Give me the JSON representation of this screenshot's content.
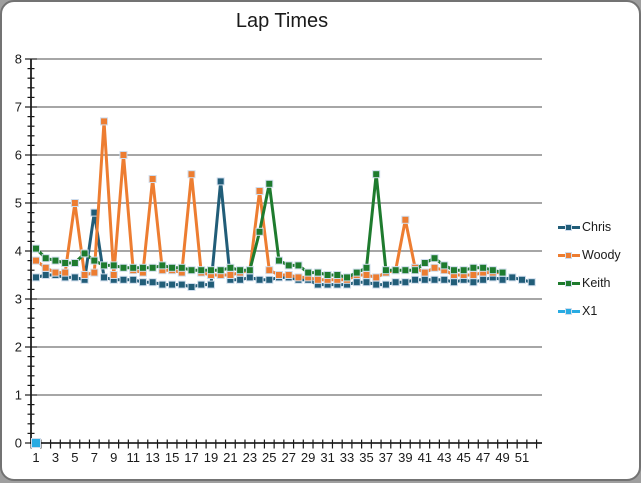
{
  "window": {
    "border_color": "#737373",
    "background": "#ffffff"
  },
  "chart_data": {
    "type": "line",
    "title": "Lap Times",
    "xlabel": "",
    "ylabel": "",
    "x": [
      1,
      2,
      3,
      4,
      5,
      6,
      7,
      8,
      9,
      10,
      11,
      12,
      13,
      14,
      15,
      16,
      17,
      18,
      19,
      20,
      21,
      22,
      23,
      24,
      25,
      26,
      27,
      28,
      29,
      30,
      31,
      32,
      33,
      34,
      35,
      36,
      37,
      38,
      39,
      40,
      41,
      42,
      43,
      44,
      45,
      46,
      47,
      48,
      49,
      50,
      51,
      52
    ],
    "xtick_labels": [
      "1",
      "3",
      "5",
      "7",
      "9",
      "11",
      "13",
      "15",
      "17",
      "19",
      "21",
      "23",
      "25",
      "27",
      "29",
      "31",
      "33",
      "35",
      "37",
      "39",
      "41",
      "43",
      "45",
      "47",
      "49",
      "51"
    ],
    "ylim": [
      0,
      8
    ],
    "ytick_interval": 1,
    "y_minor_tick": 0.2,
    "grid": "horizontal-major",
    "legend_position": "right",
    "marker": "square",
    "series": [
      {
        "name": "Chris",
        "color": "#215D78",
        "values": [
          3.45,
          3.5,
          3.5,
          3.45,
          3.45,
          3.4,
          4.8,
          3.45,
          3.4,
          3.4,
          3.4,
          3.35,
          3.35,
          3.3,
          3.3,
          3.3,
          3.25,
          3.3,
          3.3,
          5.45,
          3.4,
          3.4,
          3.45,
          3.4,
          3.4,
          3.45,
          3.45,
          3.4,
          3.4,
          3.3,
          3.3,
          3.3,
          3.3,
          3.35,
          3.35,
          3.3,
          3.3,
          3.35,
          3.35,
          3.4,
          3.4,
          3.4,
          3.4,
          3.35,
          3.4,
          3.35,
          3.4,
          3.45,
          3.4,
          3.45,
          3.4,
          3.35
        ]
      },
      {
        "name": "Woody",
        "color": "#ED7D31",
        "values": [
          3.8,
          3.65,
          3.55,
          3.55,
          5.0,
          3.5,
          3.55,
          6.7,
          3.5,
          6.0,
          3.6,
          3.55,
          5.5,
          3.6,
          3.6,
          3.55,
          5.6,
          3.55,
          3.5,
          3.5,
          3.5,
          3.55,
          3.6,
          5.25,
          3.6,
          3.5,
          3.5,
          3.45,
          3.45,
          3.4,
          3.4,
          3.4,
          3.4,
          3.5,
          3.5,
          3.45,
          3.55,
          3.6,
          4.65,
          3.65,
          3.55,
          3.65,
          3.6,
          3.5,
          3.5,
          3.5,
          3.55,
          3.55,
          3.55
        ]
      },
      {
        "name": "Keith",
        "color": "#1E7B2E",
        "values": [
          4.05,
          3.85,
          3.8,
          3.75,
          3.75,
          3.95,
          3.8,
          3.7,
          3.7,
          3.65,
          3.65,
          3.65,
          3.65,
          3.7,
          3.65,
          3.65,
          3.6,
          3.6,
          3.6,
          3.6,
          3.65,
          3.6,
          3.6,
          4.4,
          5.4,
          3.8,
          3.7,
          3.7,
          3.55,
          3.55,
          3.5,
          3.5,
          3.45,
          3.55,
          3.65,
          5.6,
          3.6,
          3.6,
          3.6,
          3.6,
          3.75,
          3.85,
          3.7,
          3.6,
          3.6,
          3.65,
          3.65,
          3.6,
          3.55
        ]
      },
      {
        "name": "X1",
        "color": "#29ABE2",
        "values": [
          0
        ]
      }
    ]
  }
}
